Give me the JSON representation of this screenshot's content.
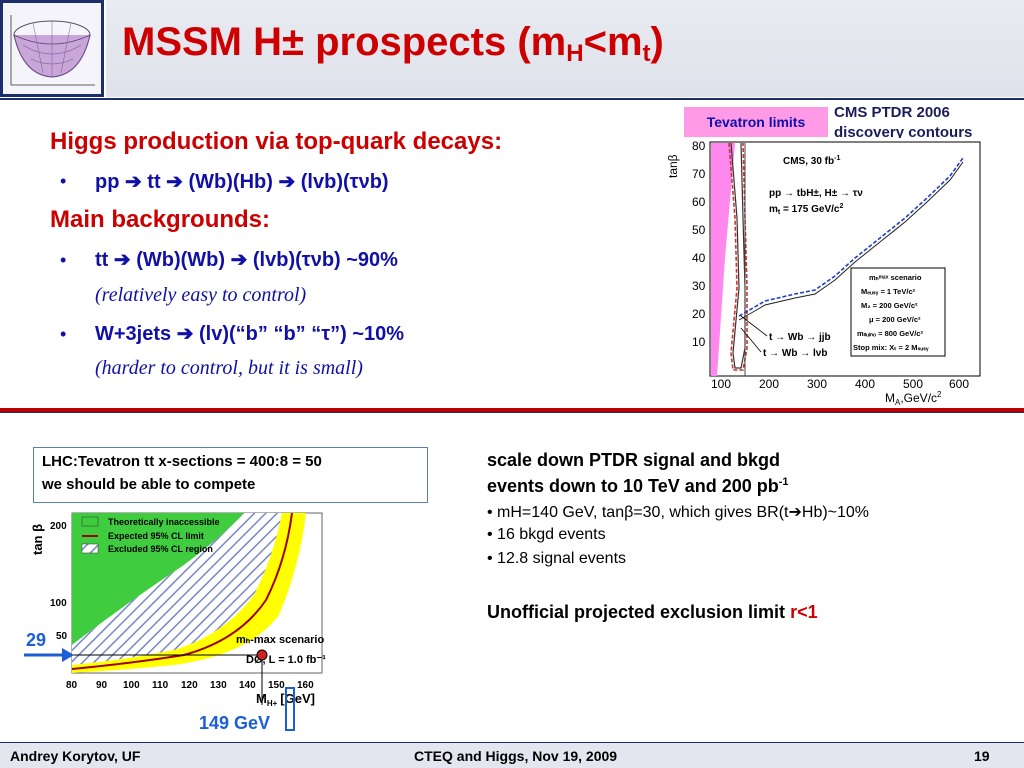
{
  "header": {
    "title_main": "MSSM H± prospects (m",
    "title_sub1": "H",
    "title_mid": "<m",
    "title_sub2": "t",
    "title_end": ")"
  },
  "left": {
    "heading1": "Higgs production via top-quark decays:",
    "bullet1": "pp ➔ tt ➔ (Wb)(Hb) ➔ (lvb)(τνb)",
    "heading2": "Main backgrounds:",
    "bullet2": "tt ➔ (Wb)(Wb) ➔ (lvb)(τνb)   ~90%",
    "note2": "(relatively easy to control)",
    "bullet3": "W+3jets ➔ (lv)(“b” “b” “τ”)  ~10%",
    "note3": "(harder to control, but it is small)"
  },
  "top_right": {
    "tevatron_label": "Tevatron limits",
    "cms_label_line1": "CMS PTDR 2006",
    "cms_label_line2": "discovery contours",
    "plot": {
      "y_label": "tanβ",
      "x_label": "M",
      "x_label_sub": "A",
      "x_label_unit": ",GeV/c",
      "x_label_sup": "2",
      "y_ticks": [
        "80",
        "70",
        "60",
        "50",
        "40",
        "30",
        "20",
        "10"
      ],
      "x_ticks": [
        "100",
        "200",
        "300",
        "400",
        "500",
        "600"
      ],
      "box1_line1": "CMS, 30 fb",
      "box1_line1_sup": "-1",
      "box1_line2": "pp → tbH±, H± → τν",
      "box1_line3": "m",
      "box1_line3_sub": "t",
      "box1_line3_end": " = 175 GeV/c",
      "box1_line3_sup": "2",
      "scenario_lines": [
        "mₕᵐᵃˣ scenario",
        "Mₑᵤₛᵧ = 1 TeV/c²",
        "M₂ = 200 GeV/c²",
        "μ = 200 GeV/c²",
        "mₗₗᵤᵢₙₒ = 800 GeV/c²",
        "Stop mix: Xₜ = 2 Mₛᵤₛᵧ"
      ],
      "curve_label1": "t → Wb → jjb",
      "curve_label2": "t → Wb → lνb"
    }
  },
  "bottom_left": {
    "lhc_line1": "LHC:Tevatron tt x-sections = 400:8 = 50",
    "lhc_line2": "we should be able to compete",
    "plot": {
      "y_label": "tan β",
      "y_ticks": [
        "200",
        "100",
        "50"
      ],
      "x_ticks": [
        "80",
        "90",
        "100",
        "110",
        "120",
        "130",
        "140",
        "150",
        "160"
      ],
      "legend": [
        "Theoretically inaccessible",
        "Expected 95% CL limit",
        "Excluded 95% CL region"
      ],
      "scenario": "mₕ-max scenario",
      "lumi": "DØ, L = 1.0 fb⁻¹",
      "x_label": "M",
      "x_label_sub": "H+",
      "x_label_unit": "[GeV]",
      "marker_29": "29",
      "marker_149": "149 GeV"
    },
    "colors": {
      "green": "#3fcc3f",
      "yellow": "#ffff00",
      "hatch": "#7a86c8",
      "arrow": "#1a5fd6",
      "red_line": "#a00000"
    }
  },
  "bottom_right": {
    "head1": "scale down PTDR signal and bkgd",
    "head2": "events down to 10 TeV and 200 pb",
    "head2_sup": "-1",
    "item1": "• mH=140 GeV, tanβ=30, which gives BR(t➔Hb)~10%",
    "item2": "• 16 bkgd events",
    "item3": "• 12.8 signal events",
    "limit_text": "Unofficial projected exclusion limit ",
    "limit_value": "r<1"
  },
  "footer": {
    "author": "Andrey Korytov, UF",
    "event": "CTEQ and Higgs, Nov 19, 2009",
    "page": "19"
  }
}
